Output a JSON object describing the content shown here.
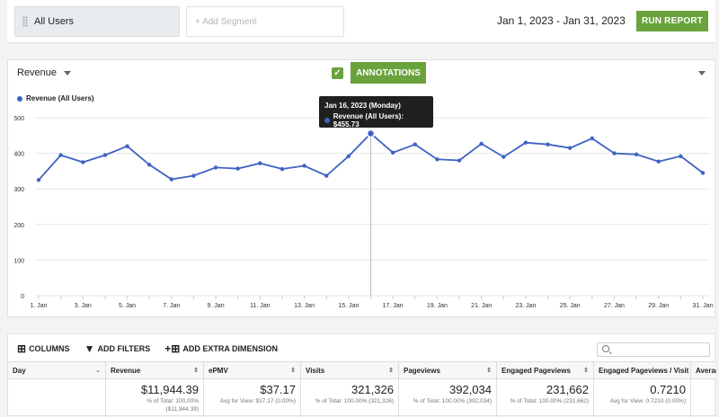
{
  "topbar": {
    "segment_active": "All Users",
    "segment_add": "+ Add Segment",
    "date_range": "Jan 1, 2023 - Jan 31, 2023",
    "run_label": "RUN REPORT"
  },
  "chart_card": {
    "metric": "Revenue",
    "annotations_label": "ANNOTATIONS",
    "tooltip": {
      "date": "Jan 16, 2023 (Monday)",
      "value": "Revenue (All Users): $455.73"
    }
  },
  "colors": {
    "accent": "#6aa23c",
    "series": "#3e62c2"
  },
  "chart_data": {
    "type": "line",
    "x": [
      "1. Jan",
      "2. Jan",
      "3. Jan",
      "4. Jan",
      "5. Jan",
      "6. Jan",
      "7. Jan",
      "8. Jan",
      "9. Jan",
      "10. Jan",
      "11. Jan",
      "12. Jan",
      "13. Jan",
      "14. Jan",
      "15. Jan",
      "16. Jan",
      "17. Jan",
      "18. Jan",
      "19. Jan",
      "20. Jan",
      "21. Jan",
      "22. Jan",
      "23. Jan",
      "24. Jan",
      "25. Jan",
      "26. Jan",
      "27. Jan",
      "28. Jan",
      "29. Jan",
      "30. Jan",
      "31. Jan"
    ],
    "x_tick_labels": [
      "1. Jan",
      "3. Jan",
      "5. Jan",
      "7. Jan",
      "9. Jan",
      "11. Jan",
      "13. Jan",
      "15. Jan",
      "17. Jan",
      "19. Jan",
      "21. Jan",
      "23. Jan",
      "25. Jan",
      "27. Jan",
      "29. Jan",
      "31. Jan"
    ],
    "series": [
      {
        "name": "Revenue (All Users)",
        "values": [
          325,
          395,
          375,
          395,
          420,
          368,
          327,
          337,
          360,
          357,
          372,
          356,
          365,
          337,
          392,
          455.73,
          402,
          425,
          383,
          380,
          427,
          390,
          430,
          425,
          415,
          442,
          400,
          397,
          377,
          392,
          345
        ]
      }
    ],
    "ylim": [
      0,
      500
    ],
    "y_ticks": [
      0,
      100,
      200,
      300,
      400,
      500
    ],
    "grid": true,
    "legend": "top-left",
    "highlight_index": 15
  },
  "table": {
    "toolbar": {
      "columns": "COLUMNS",
      "filters": "ADD FILTERS",
      "dimension": "ADD EXTRA DIMENSION"
    },
    "headers": [
      "Day",
      "Revenue",
      "ePMV",
      "Visits",
      "Pageviews",
      "Engaged Pageviews",
      "Engaged Pageviews / Visit",
      "Average"
    ],
    "totals": [
      {
        "value": "",
        "sub1": "",
        "sub2": ""
      },
      {
        "value": "$11,944.39",
        "sub1": "% of Total: 100.00%",
        "sub2": "($11,944.39)"
      },
      {
        "value": "$37.17",
        "sub1": "Avg for View: $37.17 (0.00%)",
        "sub2": ""
      },
      {
        "value": "321,326",
        "sub1": "% of Total: 100.00% (321,326)",
        "sub2": ""
      },
      {
        "value": "392,034",
        "sub1": "% of Total: 100.00% (392,034)",
        "sub2": ""
      },
      {
        "value": "231,662",
        "sub1": "% of Total: 100.00% (231,662)",
        "sub2": ""
      },
      {
        "value": "0.7210",
        "sub1": "Avg for View: 0.7210 (0.00%)",
        "sub2": ""
      },
      {
        "value": "",
        "sub1": "",
        "sub2": ""
      }
    ]
  }
}
